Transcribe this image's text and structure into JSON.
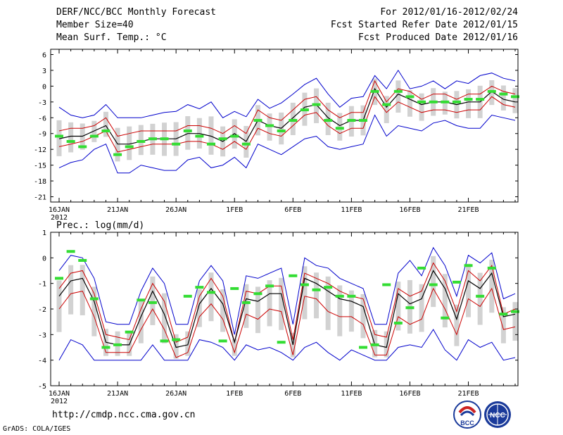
{
  "header": {
    "title": "DERF/NCC/BCC Monthly Forecast",
    "member_size": "Member Size=40",
    "variable1": "Mean Surf. Temp.: °C",
    "period": "For 2012/01/16-2012/02/24",
    "started": "Fcst Started Refer Date 2012/01/15",
    "produced": "Fcst Produced Date 2012/01/16"
  },
  "footer": {
    "url": "http://cmdp.ncc.cma.gov.cn",
    "grads": "GrADS: COLA/IGES",
    "logo_bcc": "BCC",
    "logo_ncc": "NCC"
  },
  "colors": {
    "max_min": "#0000cc",
    "spread": "#cc0000",
    "mean": "#000000",
    "box": "#d2d2d2",
    "marker": "#33dd33"
  },
  "chart_data": [
    {
      "type": "line",
      "title": "Mean Surf. Temp.: °C",
      "ylim": [
        -22,
        7
      ],
      "yticks": [
        6,
        3,
        0,
        -3,
        -6,
        -9,
        -12,
        -15,
        -18,
        -21
      ],
      "xticks": [
        "16JAN",
        "21JAN",
        "26JAN",
        "1FEB",
        "6FEB",
        "11FEB",
        "16FEB",
        "21FEB"
      ],
      "x_sublabel": "2012",
      "days": 40,
      "series": [
        {
          "name": "max",
          "values": [
            -4,
            -5.5,
            -6,
            -5.5,
            -3.5,
            -6,
            -6,
            -6,
            -5.5,
            -5,
            -4.8,
            -3.5,
            -4.3,
            -3,
            -6,
            -4.8,
            -5.8,
            -2.5,
            -4.2,
            -3.2,
            -1.5,
            0.3,
            1.5,
            -1.5,
            -4,
            -2.3,
            -2,
            2,
            -0.5,
            3,
            -0.5,
            0,
            1,
            -0.5,
            1,
            0.5,
            2,
            2.5,
            1.5,
            1
          ]
        },
        {
          "name": "upper",
          "values": [
            -8.5,
            -8,
            -8,
            -7.5,
            -6,
            -9.5,
            -9,
            -8.5,
            -8.5,
            -8.5,
            -8.5,
            -7.5,
            -7.5,
            -8,
            -9,
            -7.5,
            -9,
            -4.5,
            -6,
            -6.5,
            -4.5,
            -2.5,
            -2,
            -4.5,
            -6,
            -5,
            -5,
            1,
            -3,
            -0.5,
            -1,
            -2.5,
            -1.5,
            -1.5,
            -2.5,
            -1.5,
            -1.5,
            0,
            -1,
            -1.5
          ]
        },
        {
          "name": "mean",
          "values": [
            -10,
            -9.5,
            -9.5,
            -8.5,
            -7.5,
            -11,
            -11,
            -10.5,
            -10,
            -10,
            -10,
            -9,
            -9,
            -9.5,
            -10.5,
            -9,
            -10.5,
            -6.5,
            -7.5,
            -8,
            -6,
            -4,
            -3.5,
            -6,
            -7.5,
            -6.5,
            -6.5,
            -0.5,
            -4,
            -1.5,
            -2.5,
            -3.5,
            -3,
            -3,
            -3.5,
            -3,
            -3,
            -1,
            -2.5,
            -3
          ]
        },
        {
          "name": "lower",
          "values": [
            -11.5,
            -11,
            -10.5,
            -9.5,
            -8.5,
            -12.5,
            -12,
            -11.5,
            -11,
            -11,
            -11,
            -10.5,
            -10.5,
            -11,
            -12,
            -10.5,
            -12,
            -8,
            -9,
            -9.5,
            -7.5,
            -5.5,
            -5,
            -7.5,
            -9,
            -8,
            -8,
            -2,
            -5,
            -3,
            -4,
            -5,
            -4.5,
            -4.5,
            -5,
            -4.5,
            -4.5,
            -2,
            -3.5,
            -4
          ]
        },
        {
          "name": "min",
          "values": [
            -15.5,
            -14.5,
            -14,
            -12,
            -11,
            -16.5,
            -16.5,
            -15,
            -15.5,
            -16,
            -16,
            -14,
            -13.5,
            -15.5,
            -15,
            -13.5,
            -15.5,
            -11,
            -12,
            -13,
            -11.5,
            -10,
            -9.5,
            -11.5,
            -12,
            -11.5,
            -11,
            -5.5,
            -9.5,
            -7.5,
            -8,
            -8.5,
            -7,
            -6.5,
            -7.5,
            -8,
            -8,
            -5.5,
            -6,
            -6.5
          ]
        },
        {
          "name": "marker",
          "values": [
            -9.5,
            -10.5,
            -11.5,
            -9.5,
            -8.5,
            -13,
            -11.5,
            -10.5,
            -10,
            -10,
            -11,
            -8.5,
            -9.5,
            -11,
            -10,
            -9.5,
            -11,
            -6.5,
            -7.5,
            -8.5,
            -6.5,
            -4.5,
            -3.5,
            -6.5,
            -8,
            -6.5,
            -6.5,
            -1,
            -3.5,
            -1,
            -2,
            -3,
            -3,
            -3,
            -3,
            -2.5,
            -2.5,
            -1,
            -1.5,
            -2
          ]
        }
      ]
    },
    {
      "type": "line",
      "title": "Prec.: log(mm/d)",
      "ylim": [
        -5,
        1
      ],
      "yticks": [
        1,
        0,
        -1,
        -2,
        -3,
        -4,
        -5
      ],
      "xticks": [
        "16JAN",
        "21JAN",
        "26JAN",
        "1FEB",
        "6FEB",
        "11FEB",
        "16FEB",
        "21FEB"
      ],
      "x_sublabel": "2012",
      "days": 40,
      "series": [
        {
          "name": "max",
          "values": [
            -0.5,
            0.1,
            0,
            -0.8,
            -2.5,
            -2.6,
            -2.6,
            -1.3,
            -0.4,
            -1,
            -2.6,
            -2.6,
            -0.9,
            -0.3,
            -0.9,
            -3,
            -0.7,
            -0.8,
            -0.6,
            -0.4,
            -2.6,
            0,
            -0.3,
            -0.4,
            -0.8,
            -1,
            -1.2,
            -2.6,
            -2.6,
            -0.6,
            -0.1,
            -0.7,
            0.4,
            -0.3,
            -1.5,
            0.1,
            -0.2,
            0.2,
            -1.6,
            -1.4
          ]
        },
        {
          "name": "upper",
          "values": [
            -1.2,
            -0.6,
            -0.5,
            -1.4,
            -3,
            -3.1,
            -3.2,
            -2,
            -1,
            -1.7,
            -3.3,
            -3.1,
            -1.5,
            -0.8,
            -1.5,
            -3.3,
            -1.3,
            -1.4,
            -1.1,
            -1.1,
            -3.2,
            -0.6,
            -0.8,
            -1,
            -1.3,
            -1.5,
            -1.6,
            -3,
            -3.1,
            -1.2,
            -1.5,
            -1.3,
            -0.2,
            -0.9,
            -2.1,
            -0.5,
            -0.9,
            -0.3,
            -2.2,
            -2
          ]
        },
        {
          "name": "mean",
          "values": [
            -1.5,
            -0.9,
            -0.8,
            -1.7,
            -3.3,
            -3.4,
            -3.4,
            -2.3,
            -1.3,
            -2.2,
            -3.5,
            -3.4,
            -1.8,
            -1.2,
            -1.8,
            -3.3,
            -1.6,
            -1.7,
            -1.4,
            -1.4,
            -3.4,
            -0.8,
            -1,
            -1.3,
            -1.6,
            -1.7,
            -1.9,
            -3.4,
            -3.5,
            -1.4,
            -1.8,
            -1.6,
            -0.5,
            -1.2,
            -2.4,
            -0.9,
            -1.2,
            -0.6,
            -2.3,
            -2.2
          ]
        },
        {
          "name": "lower",
          "values": [
            -2,
            -1.4,
            -1.3,
            -2.3,
            -3.7,
            -3.7,
            -3.7,
            -2.8,
            -2,
            -2.8,
            -3.9,
            -3.7,
            -2.3,
            -1.8,
            -2.4,
            -3.7,
            -2.2,
            -2.4,
            -2,
            -2.1,
            -3.8,
            -1.5,
            -1.6,
            -2.1,
            -2.3,
            -2.3,
            -2.6,
            -3.8,
            -3.8,
            -2.3,
            -2.6,
            -2.4,
            -1.2,
            -2,
            -3,
            -1.6,
            -1.9,
            -1.2,
            -2.8,
            -2.7
          ]
        },
        {
          "name": "min",
          "values": [
            -4,
            -3.2,
            -3.4,
            -4,
            -4,
            -4,
            -4,
            -4,
            -3.4,
            -4,
            -4,
            -4,
            -3.2,
            -3.3,
            -3.5,
            -4,
            -3.4,
            -3.6,
            -3.5,
            -3.7,
            -4,
            -3.5,
            -3.3,
            -3.7,
            -4,
            -3.6,
            -3.8,
            -4,
            -4,
            -3.5,
            -3.4,
            -3.5,
            -2.8,
            -3.6,
            -4,
            -3.2,
            -3.5,
            -3.3,
            -4,
            -3.9
          ]
        },
        {
          "name": "marker",
          "values": [
            -0.8,
            0.25,
            -0.1,
            -1.6,
            -3.5,
            -3.4,
            -2.9,
            -1.65,
            -1.75,
            -3.25,
            -3.2,
            -1.5,
            -1.15,
            -1.35,
            -3.25,
            -1.2,
            -1.75,
            -1.4,
            -1.1,
            -3.3,
            -0.7,
            -1.05,
            -1.25,
            -1.15,
            -1.5,
            -1.5,
            -3.5,
            -3.4,
            -1.05,
            -2.55,
            -1.95,
            -0.4,
            -1.05,
            -2.35,
            -0.95,
            -0.3,
            -1.5,
            -0.4,
            -2.2,
            -2.1
          ]
        }
      ]
    }
  ]
}
